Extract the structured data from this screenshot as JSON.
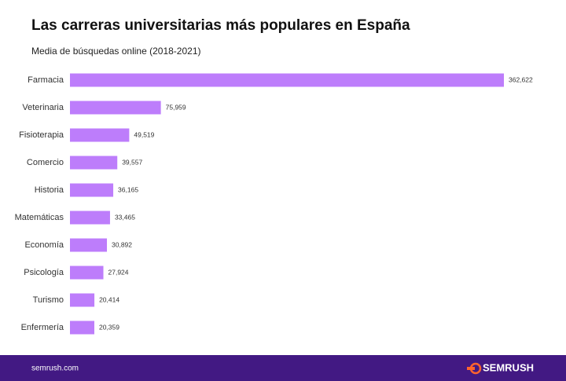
{
  "chart_data": {
    "type": "bar",
    "orientation": "horizontal",
    "title": "Las carreras universitarias más populares en España",
    "subtitle": "Media de búsquedas online (2018-2021)",
    "categories": [
      "Farmacia",
      "Veterinaria",
      "Fisioterapia",
      "Comercio",
      "Historia",
      "Matemáticas",
      "Economía",
      "Psicología",
      "Turismo",
      "Enfermería"
    ],
    "values": [
      362622,
      75959,
      49519,
      39557,
      36165,
      33465,
      30892,
      27924,
      20414,
      20359
    ],
    "value_labels": [
      "362,622",
      "75,959",
      "49,519",
      "39,557",
      "36,165",
      "33,465",
      "30,892",
      "27,924",
      "20,414",
      "20,359"
    ],
    "color": "#bd7dfb"
  },
  "footer": {
    "url": "semrush.com",
    "brand": "SEMRUSH"
  }
}
